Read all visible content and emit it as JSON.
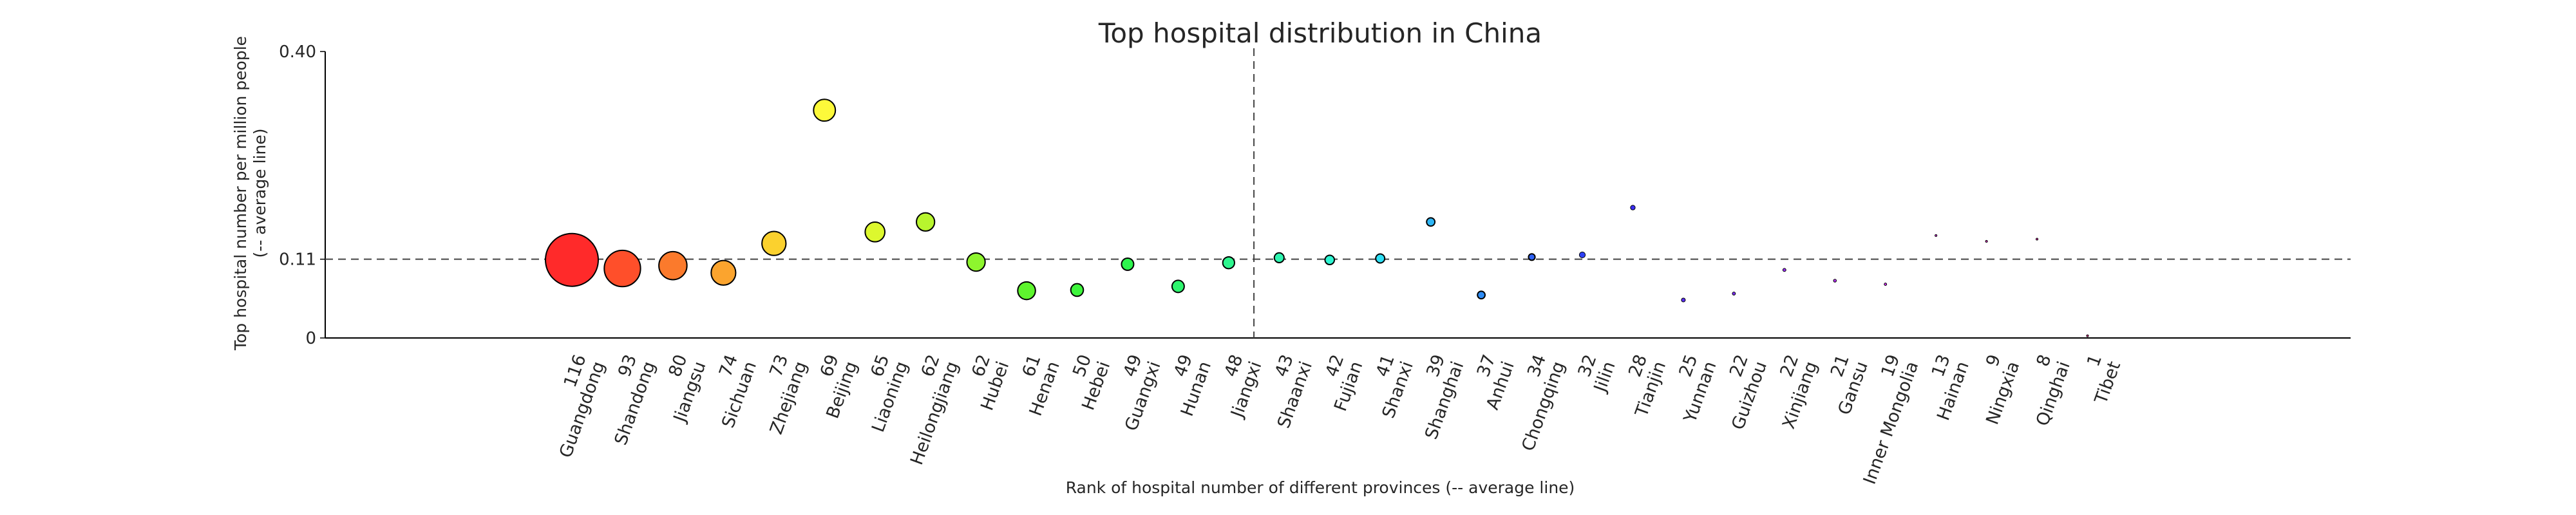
{
  "chart_data": {
    "type": "scatter",
    "title": "Top hospital distribution in China",
    "xlabel": "Rank of hospital number of different provinces (-- average line)",
    "ylabel_line1": "Top hospital number per million people",
    "ylabel_line2": "(-- average line)",
    "ylim": [
      0,
      0.4
    ],
    "yticks": [
      {
        "value": 0,
        "label": "0"
      },
      {
        "value": 0.11,
        "label": "0.11"
      },
      {
        "value": 0.4,
        "label": "0.40"
      }
    ],
    "average_y": 0.11,
    "average_rank": 14.5,
    "grid": false,
    "points": [
      {
        "count": "116",
        "province": "Guangdong",
        "y": 0.109,
        "color": "#ff2a2a"
      },
      {
        "count": "93",
        "province": "Shandong",
        "y": 0.097,
        "color": "#ff4f2a"
      },
      {
        "count": "80",
        "province": "Jiangsu",
        "y": 0.101,
        "color": "#fb7a2c"
      },
      {
        "count": "74",
        "province": "Sichuan",
        "y": 0.091,
        "color": "#fba42e"
      },
      {
        "count": "73",
        "province": "Zhejiang",
        "y": 0.132,
        "color": "#fbd12e"
      },
      {
        "count": "69",
        "province": "Beijing",
        "y": 0.318,
        "color": "#fdf93a"
      },
      {
        "count": "65",
        "province": "Liaoning",
        "y": 0.148,
        "color": "#ddf82e"
      },
      {
        "count": "62",
        "province": "Heilongjiang",
        "y": 0.162,
        "color": "#b8f52e"
      },
      {
        "count": "62",
        "province": "Hubei",
        "y": 0.106,
        "color": "#8ef52e"
      },
      {
        "count": "61",
        "province": "Henan",
        "y": 0.066,
        "color": "#5ef52e"
      },
      {
        "count": "50",
        "province": "Hebei",
        "y": 0.067,
        "color": "#3ef53c"
      },
      {
        "count": "49",
        "province": "Guangxi",
        "y": 0.103,
        "color": "#2ef54e"
      },
      {
        "count": "49",
        "province": "Hunan",
        "y": 0.072,
        "color": "#2ef56e"
      },
      {
        "count": "48",
        "province": "Jiangxi",
        "y": 0.105,
        "color": "#2ef58e"
      },
      {
        "count": "43",
        "province": "Shaanxi",
        "y": 0.112,
        "color": "#2ef5b0"
      },
      {
        "count": "42",
        "province": "Fujian",
        "y": 0.109,
        "color": "#2ef5d2"
      },
      {
        "count": "41",
        "province": "Shanxi",
        "y": 0.111,
        "color": "#2ee0f5"
      },
      {
        "count": "39",
        "province": "Shanghai",
        "y": 0.162,
        "color": "#2eb6f5"
      },
      {
        "count": "37",
        "province": "Anhui",
        "y": 0.06,
        "color": "#2e8cf5"
      },
      {
        "count": "34",
        "province": "Chongqing",
        "y": 0.113,
        "color": "#2e62f5"
      },
      {
        "count": "32",
        "province": "Jilin",
        "y": 0.116,
        "color": "#2e40f5"
      },
      {
        "count": "28",
        "province": "Tianjin",
        "y": 0.182,
        "color": "#3a2ef5"
      },
      {
        "count": "25",
        "province": "Yunnan",
        "y": 0.053,
        "color": "#5a2ef5"
      },
      {
        "count": "22",
        "province": "Guizhou",
        "y": 0.062,
        "color": "#7a2ef5"
      },
      {
        "count": "22",
        "province": "Xinjiang",
        "y": 0.095,
        "color": "#982ef5"
      },
      {
        "count": "21",
        "province": "Gansu",
        "y": 0.08,
        "color": "#b62ef5"
      },
      {
        "count": "19",
        "province": "Inner Mongolia",
        "y": 0.075,
        "color": "#d22ef5"
      },
      {
        "count": "13",
        "province": "Hainan",
        "y": 0.143,
        "color": "#ea2ef0"
      },
      {
        "count": "9",
        "province": "Ningxia",
        "y": 0.135,
        "color": "#f52ed8"
      },
      {
        "count": "8",
        "province": "Qinghai",
        "y": 0.138,
        "color": "#f52eba"
      },
      {
        "count": "1",
        "province": "Tibet",
        "y": 0.003,
        "color": "#f52e98"
      }
    ]
  }
}
